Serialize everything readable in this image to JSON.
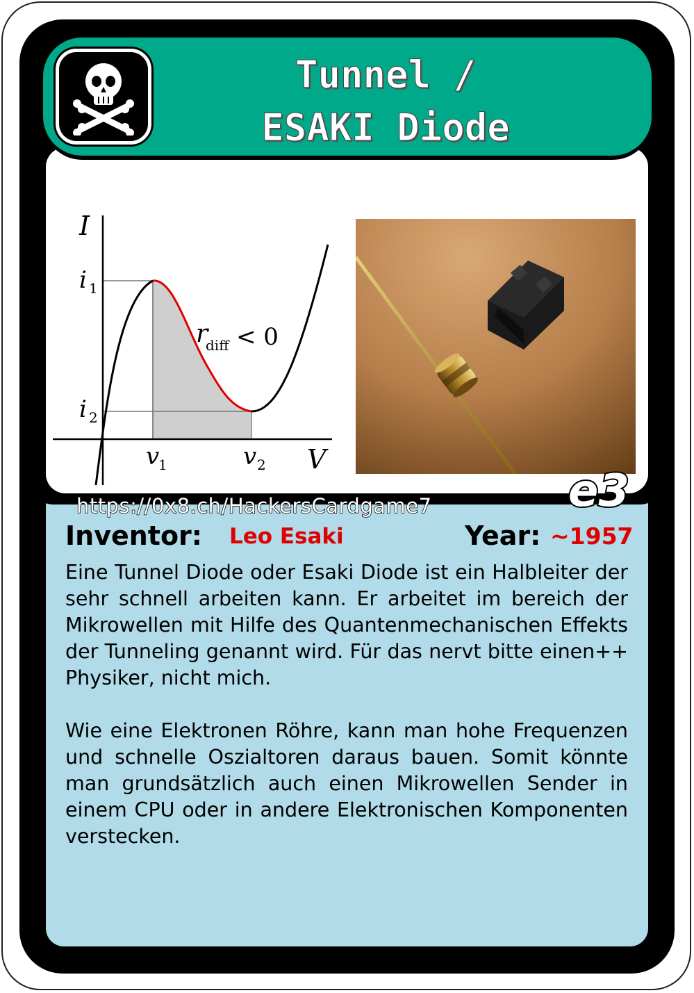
{
  "card": {
    "title_line1": "Tunnel /",
    "title_line2": "ESAKI Diode",
    "icon": "skull-crossbones-icon",
    "level": "e3",
    "url": "https://0x8.ch/HackersCardgame7"
  },
  "info": {
    "inventor_label": "Inventor:",
    "inventor_value": "Leo Esaki",
    "year_label": "Year:",
    "year_value": "~1957"
  },
  "graph": {
    "axis_y": "I",
    "axis_x": "V",
    "i1": "i",
    "i1_sub": "1",
    "i2": "i",
    "i2_sub": "2",
    "v1": "v",
    "v1_sub": "1",
    "v2": "v",
    "v2_sub": "2",
    "r_label": "r",
    "r_sub": "diff",
    "r_rel": "< 0"
  },
  "description": {
    "paragraph1": "Eine Tunnel Diode oder Esaki Diode ist ein Halbleiter der sehr schnell arbeiten kann. Er arbeitet im bereich der Mikrowellen mit Hilfe des Quantenmechanischen Effekts der Tunneling genannt wird. Für das nervt bitte einen++ Physiker, nicht mich.",
    "paragraph2": "Wie eine Elektronen Röhre, kann man hohe Frequenzen und schnelle Oszialtoren daraus bauen. Somit könnte man grundsätzlich auch einen Mikrowellen Sender in einem CPU oder in andere Elektronischen Komponenten verstecken."
  },
  "colors": {
    "banner": "#00a98a",
    "panel": "#b1dbe8",
    "accent": "#e00000"
  }
}
